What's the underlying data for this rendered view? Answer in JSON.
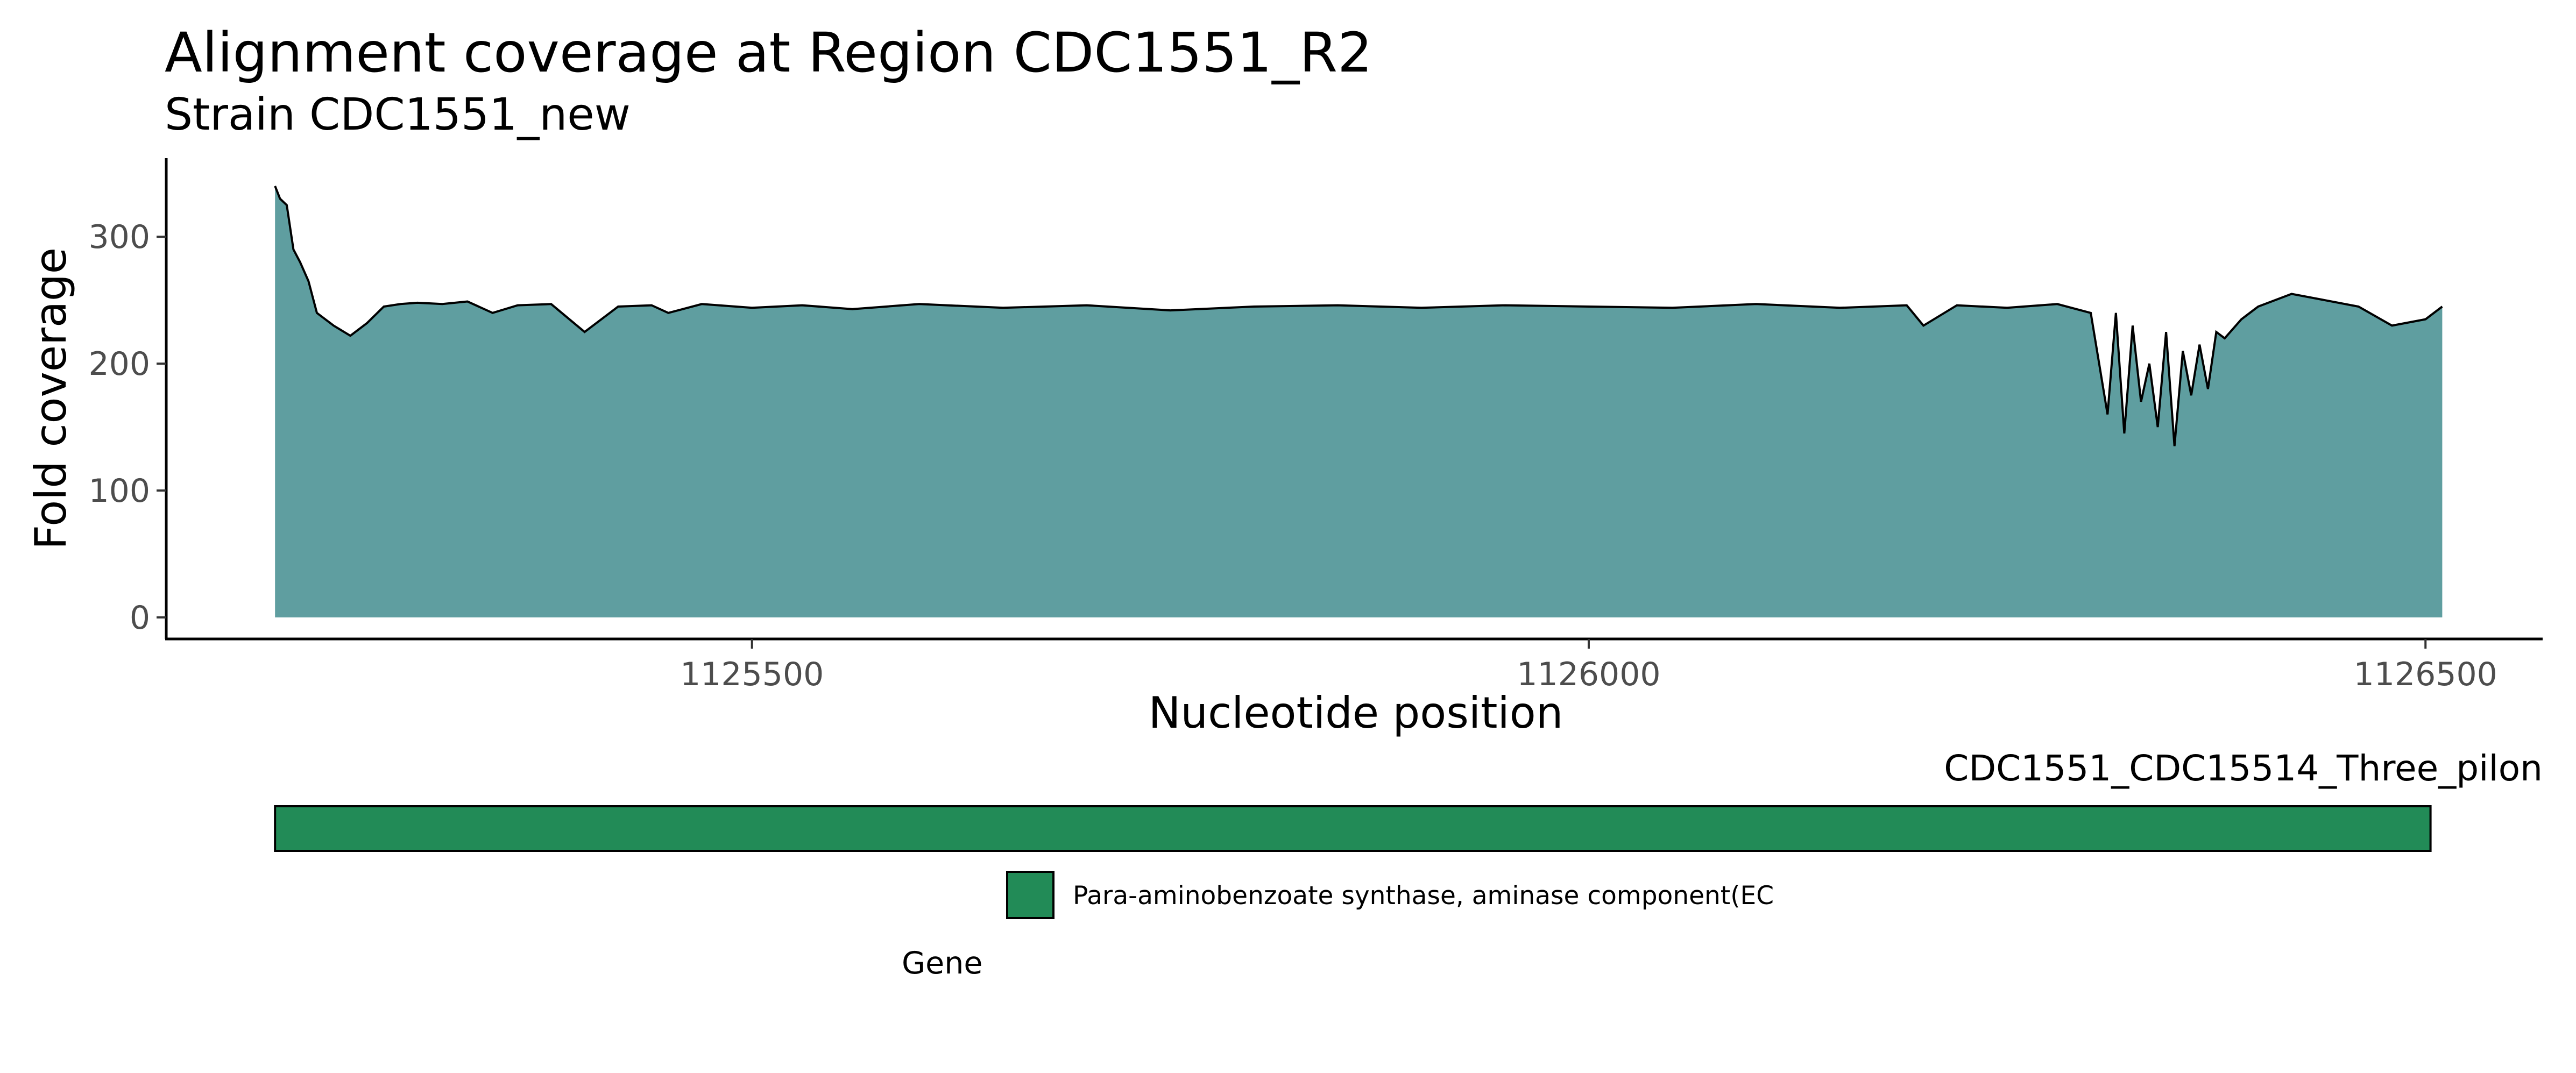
{
  "chart_data": {
    "type": "area",
    "title": "Alignment coverage at Region CDC1551_R2",
    "subtitle": "Strain CDC1551_new",
    "xlabel": "Nucleotide position",
    "ylabel": "Fold coverage",
    "xlim": [
      1125150,
      1126570
    ],
    "ylim": [
      -17,
      362
    ],
    "x_ticks": [
      1125500,
      1126000,
      1126500
    ],
    "y_ticks": [
      0,
      100,
      200,
      300
    ],
    "grid": false,
    "fill_color": "#5f9ea0",
    "line_color": "#000000",
    "series": [
      {
        "x": [
          1125215,
          1125218,
          1125222,
          1125226,
          1125230,
          1125235,
          1125240,
          1125250,
          1125260,
          1125270,
          1125280,
          1125290,
          1125300,
          1125315,
          1125330,
          1125345,
          1125360,
          1125380,
          1125400,
          1125420,
          1125440,
          1125450,
          1125470,
          1125500,
          1125530,
          1125560,
          1125600,
          1125650,
          1125700,
          1125750,
          1125800,
          1125850,
          1125900,
          1125950,
          1126000,
          1126050,
          1126100,
          1126150,
          1126190,
          1126200,
          1126220,
          1126250,
          1126280,
          1126300,
          1126310,
          1126315,
          1126320,
          1126325,
          1126330,
          1126335,
          1126340,
          1126345,
          1126350,
          1126355,
          1126360,
          1126365,
          1126370,
          1126375,
          1126380,
          1126390,
          1126400,
          1126420,
          1126440,
          1126460,
          1126480,
          1126500,
          1126510
        ],
        "y": [
          340,
          330,
          325,
          290,
          280,
          265,
          240,
          230,
          222,
          232,
          245,
          247,
          248,
          247,
          249,
          240,
          246,
          247,
          225,
          245,
          246,
          240,
          247,
          244,
          246,
          243,
          247,
          244,
          246,
          242,
          245,
          246,
          244,
          246,
          245,
          244,
          247,
          244,
          246,
          230,
          246,
          244,
          247,
          240,
          160,
          240,
          145,
          230,
          170,
          200,
          150,
          225,
          135,
          210,
          175,
          215,
          180,
          225,
          220,
          235,
          245,
          255,
          250,
          245,
          230,
          235,
          245
        ]
      }
    ],
    "gene_track": {
      "label": "CDC1551_CDC15514_Three_pilon",
      "start": 1125215,
      "end": 1126503,
      "color": "#228b57"
    },
    "legend": {
      "title": "Gene",
      "entries": [
        "Para-aminobenzoate synthase, aminase component(EC"
      ],
      "placement": "bottom"
    }
  }
}
